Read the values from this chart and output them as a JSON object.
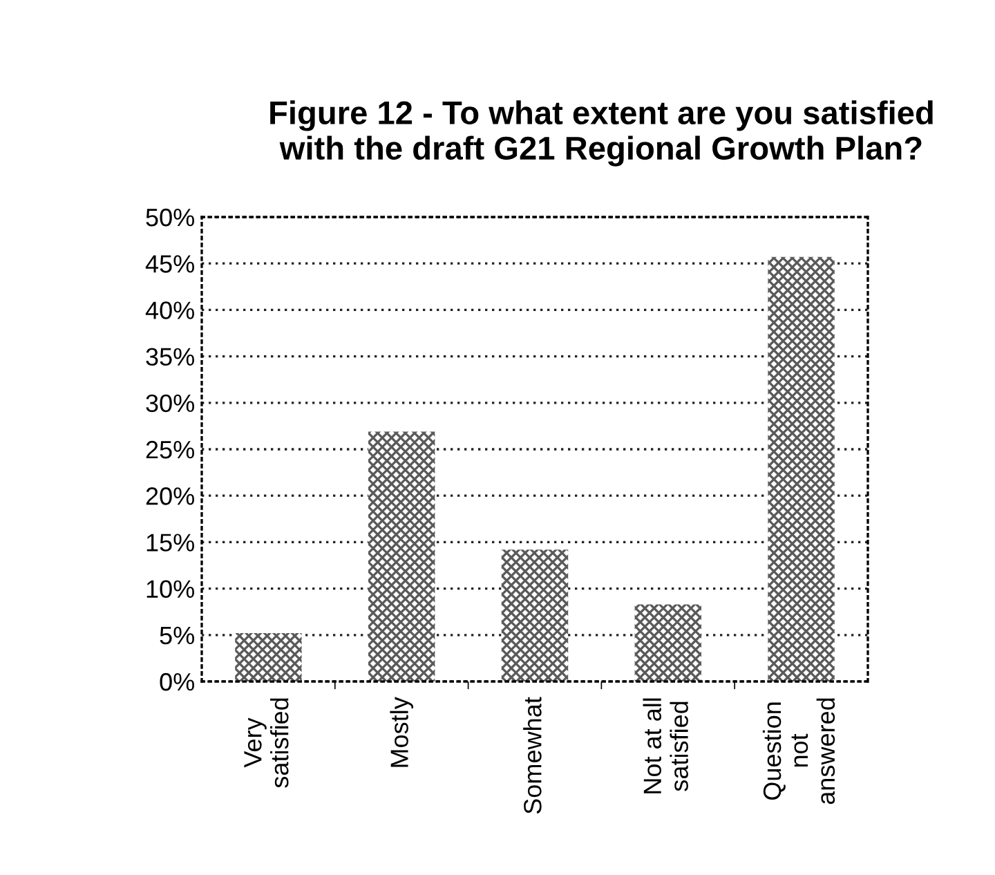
{
  "chart_data": {
    "type": "bar",
    "title": "Figure 12 - To what extent are you satisfied\nwith the draft G21 Regional Growth Plan?",
    "categories": [
      "Very\nsatisfied",
      "Mostly",
      "Somewhat",
      "Not at all\nsatisfied",
      "Question\nnot\nanswered"
    ],
    "values": [
      5.2,
      26.9,
      14.2,
      8.3,
      45.7
    ],
    "color": "#5a5a5a",
    "ylim": [
      0,
      50
    ],
    "yticks": [
      {
        "value": 0,
        "label": "0%"
      },
      {
        "value": 5,
        "label": "5%"
      },
      {
        "value": 10,
        "label": "10%"
      },
      {
        "value": 15,
        "label": "15%"
      },
      {
        "value": 20,
        "label": "20%"
      },
      {
        "value": 25,
        "label": "25%"
      },
      {
        "value": 30,
        "label": "30%"
      },
      {
        "value": 35,
        "label": "35%"
      },
      {
        "value": 40,
        "label": "40%"
      },
      {
        "value": 45,
        "label": "45%"
      },
      {
        "value": 50,
        "label": "50%"
      }
    ],
    "grid": "y",
    "legend": false
  }
}
